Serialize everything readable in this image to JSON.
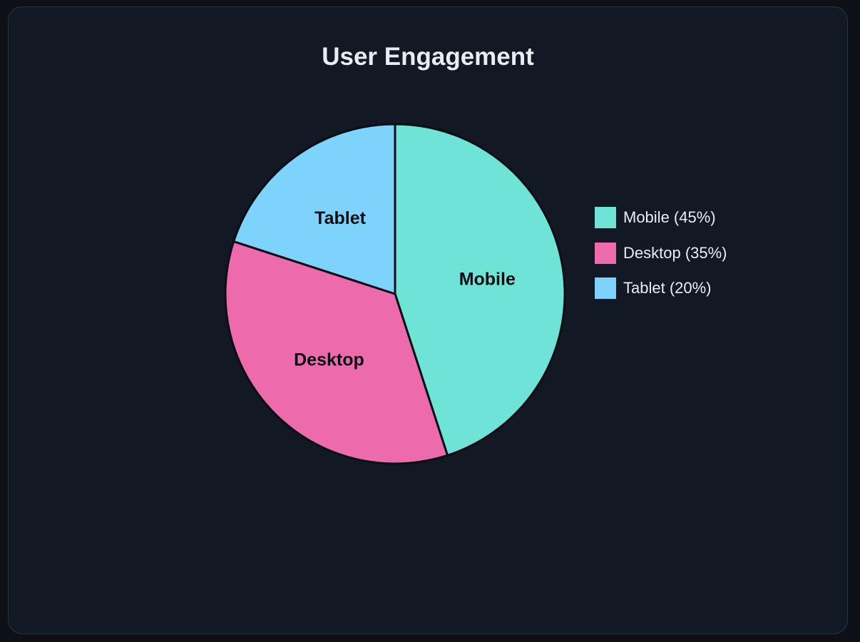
{
  "chart_data": {
    "type": "pie",
    "title": "User Engagement",
    "slices": [
      {
        "label": "Mobile",
        "value": 45,
        "legend": "Mobile (45%)",
        "color": "#6fe3d6"
      },
      {
        "label": "Desktop",
        "value": 35,
        "legend": "Desktop (35%)",
        "color": "#ed6aad"
      },
      {
        "label": "Tablet",
        "value": 20,
        "legend": "Tablet (20%)",
        "color": "#7ed3fc"
      }
    ],
    "legend_position": "right",
    "slice_border_color": "#0b0f14"
  },
  "theme": {
    "page_background": "#0d1117",
    "card_background": "#131924",
    "card_border": "#25363b",
    "text_color": "#e6edf3"
  }
}
